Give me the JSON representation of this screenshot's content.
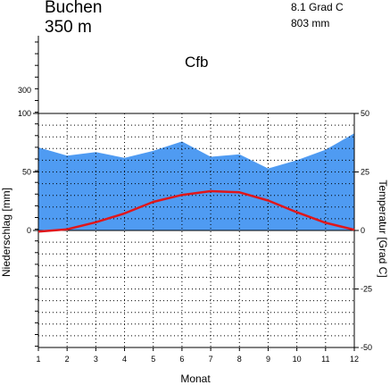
{
  "header": {
    "station": "Buchen",
    "elevation": "350 m",
    "mean_temperature": "8.1 Grad C",
    "annual_precipitation": "803 mm",
    "climate_class": "Cfb"
  },
  "colors": {
    "precipitation_fill": "#4f9bf2",
    "temperature_line": "#e0161a",
    "grid": "#000000"
  },
  "chart_data": {
    "type": "area",
    "title": "",
    "xlabel": "Monat",
    "ylabel_left": "Niederschlag [mm]",
    "ylabel_right": "Temperatur [Grad C]",
    "x": [
      1,
      2,
      3,
      4,
      5,
      6,
      7,
      8,
      9,
      10,
      11,
      12
    ],
    "x_ticks": [
      "1",
      "2",
      "3",
      "4",
      "5",
      "6",
      "7",
      "8",
      "9",
      "10",
      "11",
      "12"
    ],
    "precip_axis": {
      "ylim_linear": [
        0,
        100
      ],
      "ticks_major": [
        "0",
        "50",
        "100"
      ],
      "ticks_upper": [
        "300"
      ]
    },
    "temp_axis": {
      "ylim": [
        -50,
        50
      ],
      "ticks": [
        "50",
        "25",
        "0",
        "-25",
        "-50"
      ]
    },
    "series": [
      {
        "values": [
          71,
          64,
          67,
          62,
          68,
          76,
          63,
          65,
          53,
          60,
          69,
          83
        ],
        "axis": "left",
        "type": "area"
      },
      {
        "values": [
          -0.5,
          0.5,
          3.5,
          7.3,
          12.2,
          15.2,
          16.8,
          16.3,
          12.8,
          7.8,
          3.3,
          0.3
        ],
        "axis": "right",
        "type": "line"
      }
    ],
    "grid": true
  }
}
